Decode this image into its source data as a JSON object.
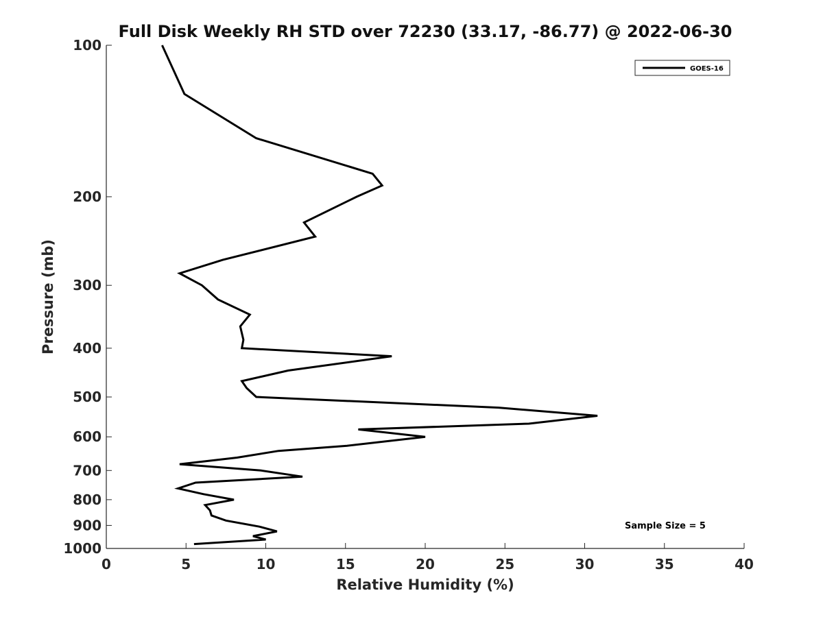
{
  "chart_data": {
    "type": "line",
    "title": "Full Disk Weekly RH STD over 72230 (33.17, -86.77) @ 2022-06-30",
    "xlabel": "Relative Humidity (%)",
    "ylabel": "Pressure (mb)",
    "xlim": [
      0,
      40
    ],
    "ylim": [
      100,
      1000
    ],
    "yscale": "log",
    "yreversed": true,
    "x_ticks": [
      "0",
      "5",
      "10",
      "15",
      "20",
      "25",
      "30",
      "35",
      "40"
    ],
    "y_ticks": [
      "100",
      "200",
      "300",
      "400",
      "500",
      "600",
      "700",
      "800",
      "900",
      "1000"
    ],
    "grid": false,
    "legend_position": "top-right",
    "series": [
      {
        "name": "GOES-16",
        "color": "#000000",
        "points": [
          [
            3.5,
            100
          ],
          [
            4.9,
            125
          ],
          [
            9.4,
            153
          ],
          [
            16.7,
            180
          ],
          [
            17.3,
            190
          ],
          [
            15.7,
            200
          ],
          [
            12.4,
            225
          ],
          [
            13.1,
            240
          ],
          [
            7.3,
            267
          ],
          [
            4.6,
            284
          ],
          [
            6.0,
            300
          ],
          [
            7.0,
            320
          ],
          [
            9.0,
            343
          ],
          [
            8.4,
            362
          ],
          [
            8.6,
            385
          ],
          [
            8.5,
            400
          ],
          [
            17.9,
            415
          ],
          [
            11.4,
            443
          ],
          [
            8.5,
            465
          ],
          [
            8.8,
            480
          ],
          [
            9.4,
            500
          ],
          [
            24.6,
            525
          ],
          [
            30.8,
            545
          ],
          [
            26.5,
            565
          ],
          [
            15.8,
            580
          ],
          [
            20.0,
            600
          ],
          [
            15.1,
            625
          ],
          [
            10.8,
            640
          ],
          [
            8.2,
            660
          ],
          [
            4.6,
            680
          ],
          [
            9.7,
            700
          ],
          [
            12.3,
            720
          ],
          [
            5.6,
            740
          ],
          [
            4.5,
            760
          ],
          [
            6.1,
            780
          ],
          [
            8.0,
            800
          ],
          [
            6.2,
            820
          ],
          [
            6.5,
            840
          ],
          [
            6.6,
            860
          ],
          [
            7.5,
            880
          ],
          [
            9.6,
            905
          ],
          [
            10.7,
            925
          ],
          [
            9.2,
            945
          ],
          [
            10.0,
            960
          ],
          [
            5.5,
            980
          ]
        ]
      }
    ],
    "annotations": [
      "Sample Size = 5"
    ]
  }
}
